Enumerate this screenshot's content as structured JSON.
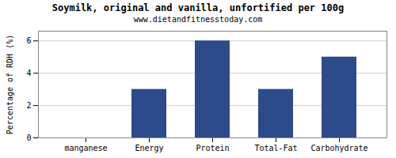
{
  "chart_data": {
    "type": "bar",
    "title": "Soymilk, original and vanilla, unfortified per 100g",
    "subtitle": "www.dietandfitnesstoday.com",
    "categories": [
      "manganese",
      "Energy",
      "Protein",
      "Total-Fat",
      "Carbohydrate"
    ],
    "values": [
      0,
      3,
      6,
      3,
      5
    ],
    "color": "#2d4a8a",
    "ylabel": "Percentage of RDH (%)",
    "ylim": [
      0,
      6.6
    ],
    "yticks": [
      0,
      2,
      4,
      6
    ],
    "grid": true
  }
}
